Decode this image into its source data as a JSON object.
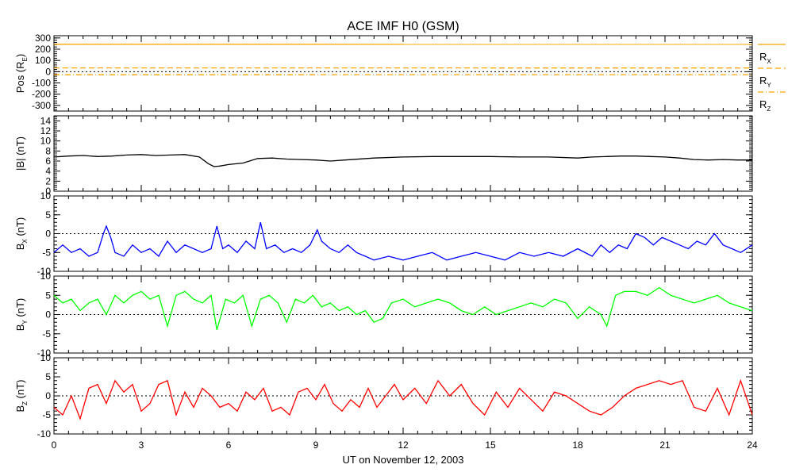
{
  "title": "ACE IMF H0 (GSM)",
  "xlabel": "UT on November 12, 2003",
  "colors": {
    "frame": "#000000",
    "pos": "#ffa500",
    "bmag": "#000000",
    "bx": "#0000ff",
    "by": "#00ff00",
    "bz": "#ff0000"
  },
  "chart_data": [
    {
      "type": "line",
      "panel": "position",
      "ylabel": "Pos (R",
      "ylabel_sub": "E",
      "ylabel_tail": ")",
      "xlim": [
        0,
        24
      ],
      "ylim": [
        -350,
        320
      ],
      "yticks": [
        300,
        200,
        100,
        0,
        -100,
        -200,
        -300
      ],
      "zero_line": true,
      "series": [
        {
          "name": "R",
          "sub": "X",
          "style": "solid",
          "x": [
            0,
            24
          ],
          "values": [
            244,
            243
          ]
        },
        {
          "name": "R",
          "sub": "Y",
          "style": "dashed",
          "x": [
            0,
            24
          ],
          "values": [
            34,
            33
          ]
        },
        {
          "name": "R",
          "sub": "Z",
          "style": "dashdot",
          "x": [
            0,
            24
          ],
          "values": [
            -27,
            -26
          ]
        }
      ]
    },
    {
      "type": "line",
      "panel": "bmag",
      "ylabel": "|B| (nT)",
      "xlim": [
        0,
        24
      ],
      "ylim": [
        0,
        15
      ],
      "yticks": [
        14,
        12,
        10,
        8,
        6,
        4,
        2,
        0
      ],
      "zero_line": false,
      "series": [
        {
          "name": "|B|",
          "x": [
            0,
            0.5,
            1,
            1.5,
            2,
            2.5,
            3,
            3.5,
            4,
            4.5,
            5,
            5.3,
            5.5,
            5.7,
            6,
            6.5,
            7,
            7.5,
            8,
            8.5,
            9,
            9.5,
            10,
            11,
            12,
            13,
            14,
            15,
            16,
            17,
            18,
            18.5,
            19,
            19.5,
            20,
            20.5,
            21,
            21.5,
            22,
            22.5,
            23,
            23.5,
            24
          ],
          "values": [
            6.8,
            7.0,
            7.1,
            6.9,
            7.0,
            7.2,
            7.3,
            7.1,
            7.2,
            7.3,
            6.8,
            5.5,
            4.9,
            5.0,
            5.3,
            5.6,
            6.5,
            6.6,
            6.4,
            6.3,
            6.2,
            6.0,
            6.2,
            6.6,
            6.8,
            6.9,
            6.9,
            6.9,
            6.8,
            6.8,
            6.6,
            6.8,
            6.9,
            7.0,
            7.0,
            6.9,
            6.8,
            6.6,
            6.3,
            6.2,
            6.3,
            6.2,
            6.2
          ]
        }
      ]
    },
    {
      "type": "line",
      "panel": "bx",
      "ylabel": "B",
      "ylabel_sub": "X",
      "ylabel_tail": " (nT)",
      "xlim": [
        0,
        24
      ],
      "ylim": [
        -10,
        10
      ],
      "yticks": [
        10,
        5,
        0,
        -5,
        -10
      ],
      "zero_line": true,
      "series": [
        {
          "name": "B_X",
          "x": [
            0,
            0.3,
            0.6,
            0.9,
            1.2,
            1.5,
            1.7,
            1.8,
            1.95,
            2.1,
            2.4,
            2.7,
            3.0,
            3.3,
            3.6,
            3.9,
            4.2,
            4.5,
            4.8,
            5.1,
            5.4,
            5.6,
            5.8,
            6.0,
            6.3,
            6.6,
            6.9,
            7.1,
            7.3,
            7.6,
            7.9,
            8.2,
            8.5,
            8.8,
            9.05,
            9.2,
            9.5,
            9.8,
            10.1,
            10.4,
            10.7,
            11.0,
            11.5,
            12.0,
            12.5,
            13.0,
            13.5,
            14.0,
            14.5,
            15.0,
            15.5,
            16.0,
            16.5,
            17.0,
            17.5,
            18.0,
            18.5,
            18.8,
            19.1,
            19.4,
            19.7,
            20.0,
            20.3,
            20.6,
            20.9,
            21.2,
            21.5,
            21.8,
            22.1,
            22.4,
            22.7,
            23.0,
            23.3,
            23.6,
            24.0
          ],
          "values": [
            -5,
            -3,
            -5,
            -4,
            -6,
            -5,
            0,
            2,
            -1,
            -5,
            -6,
            -3,
            -5,
            -4,
            -6,
            -2,
            -5,
            -3,
            -4,
            -5,
            -4,
            2,
            -4,
            -3,
            -5,
            -2,
            -4,
            3,
            -4,
            -3,
            -5,
            -4,
            -5,
            -3,
            1,
            -2,
            -4,
            -5,
            -3,
            -5,
            -6,
            -7,
            -6,
            -7,
            -6,
            -5,
            -7,
            -6,
            -5,
            -6,
            -7,
            -5,
            -6,
            -5,
            -6,
            -4,
            -6,
            -3,
            -5,
            -3,
            -4,
            0,
            -1,
            -3,
            -1,
            -2,
            -3,
            -4,
            -2,
            -3,
            0,
            -3,
            -4,
            -5,
            -3
          ]
        }
      ]
    },
    {
      "type": "line",
      "panel": "by",
      "ylabel": "B",
      "ylabel_sub": "Y",
      "ylabel_tail": " (nT)",
      "xlim": [
        0,
        24
      ],
      "ylim": [
        -10,
        10
      ],
      "yticks": [
        10,
        5,
        0,
        -5,
        -10
      ],
      "zero_line": true,
      "series": [
        {
          "name": "B_Y",
          "x": [
            0,
            0.3,
            0.6,
            0.9,
            1.2,
            1.5,
            1.8,
            2.1,
            2.4,
            2.7,
            3.0,
            3.3,
            3.6,
            3.9,
            4.2,
            4.5,
            4.8,
            5.1,
            5.4,
            5.6,
            5.9,
            6.2,
            6.5,
            6.8,
            7.1,
            7.4,
            7.7,
            8.0,
            8.3,
            8.6,
            8.9,
            9.2,
            9.5,
            9.8,
            10.1,
            10.4,
            10.7,
            11.0,
            11.3,
            11.6,
            12.0,
            12.4,
            12.8,
            13.2,
            13.6,
            14.0,
            14.4,
            14.8,
            15.2,
            15.6,
            16.0,
            16.4,
            16.8,
            17.2,
            17.6,
            18.0,
            18.4,
            18.8,
            19.0,
            19.3,
            19.6,
            20.0,
            20.4,
            20.8,
            21.2,
            21.6,
            22.0,
            22.4,
            22.8,
            23.2,
            23.6,
            24.0
          ],
          "values": [
            5,
            3,
            4,
            1,
            3,
            4,
            0,
            5,
            3,
            5,
            6,
            4,
            5,
            -3,
            5,
            6,
            4,
            3,
            5,
            -4,
            4,
            3,
            5,
            -3,
            4,
            5,
            3,
            -2,
            4,
            3,
            5,
            2,
            3,
            1,
            2,
            0,
            1,
            -2,
            -1,
            3,
            4,
            2,
            3,
            4,
            3,
            1,
            0,
            2,
            0,
            1,
            2,
            3,
            2,
            4,
            3,
            -1,
            2,
            0,
            -3,
            5,
            6,
            6,
            5,
            7,
            5,
            4,
            3,
            4,
            5,
            3,
            2,
            1
          ]
        }
      ]
    },
    {
      "type": "line",
      "panel": "bz",
      "ylabel": "B",
      "ylabel_sub": "Z",
      "ylabel_tail": " (nT)",
      "xlim": [
        0,
        24
      ],
      "ylim": [
        -10,
        10
      ],
      "yticks": [
        10,
        5,
        0,
        -5,
        -10
      ],
      "zero_line": true,
      "series": [
        {
          "name": "B_Z",
          "x": [
            0,
            0.3,
            0.6,
            0.9,
            1.2,
            1.5,
            1.8,
            2.1,
            2.4,
            2.7,
            3.0,
            3.3,
            3.6,
            3.9,
            4.2,
            4.5,
            4.8,
            5.1,
            5.4,
            5.7,
            6.0,
            6.3,
            6.6,
            6.9,
            7.2,
            7.5,
            7.8,
            8.1,
            8.4,
            8.7,
            9.0,
            9.3,
            9.6,
            9.9,
            10.2,
            10.5,
            10.8,
            11.1,
            11.4,
            11.7,
            12.0,
            12.4,
            12.8,
            13.2,
            13.6,
            14.0,
            14.4,
            14.8,
            15.2,
            15.6,
            16.0,
            16.4,
            16.8,
            17.2,
            17.6,
            18.0,
            18.4,
            18.8,
            19.2,
            19.6,
            20.0,
            20.4,
            20.8,
            21.2,
            21.6,
            22.0,
            22.4,
            22.8,
            23.2,
            23.6,
            24.0
          ],
          "values": [
            -3,
            -5,
            0,
            -6,
            2,
            3,
            -2,
            4,
            1,
            3,
            -4,
            -2,
            3,
            4,
            -5,
            1,
            -3,
            2,
            0,
            -3,
            -2,
            -4,
            1,
            -1,
            2,
            -4,
            -3,
            -5,
            1,
            2,
            -1,
            3,
            -2,
            -4,
            -1,
            -3,
            2,
            -3,
            0,
            3,
            -1,
            2,
            -2,
            4,
            0,
            3,
            -2,
            -5,
            1,
            -3,
            2,
            -1,
            -4,
            1,
            0,
            -2,
            -4,
            -5,
            -3,
            0,
            2,
            3,
            4,
            3,
            4,
            -3,
            -4,
            2,
            -5,
            4,
            -5
          ]
        }
      ]
    }
  ],
  "xaxis": {
    "ticks": [
      0,
      3,
      6,
      9,
      12,
      15,
      18,
      21,
      24
    ],
    "labels": [
      "0",
      "3",
      "6",
      "9",
      "12",
      "15",
      "18",
      "21",
      "24"
    ]
  }
}
